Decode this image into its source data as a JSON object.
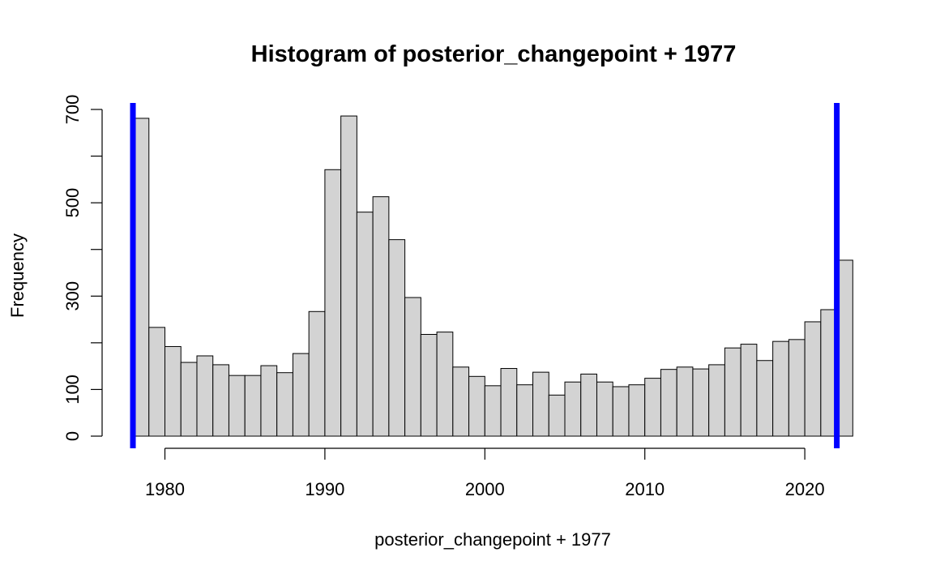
{
  "chart_data": {
    "type": "bar",
    "title": "Histogram of posterior_changepoint + 1977",
    "xlabel": "posterior_changepoint + 1977",
    "ylabel": "Frequency",
    "xlim": [
      1976.5,
      2023
    ],
    "ylim": [
      0,
      735
    ],
    "x_ticks": [
      1980,
      1990,
      2000,
      2010,
      2020
    ],
    "y_ticks": [
      0,
      100,
      300,
      500,
      700
    ],
    "bin_width": 1,
    "bins_start": [
      1978,
      1979,
      1980,
      1981,
      1982,
      1983,
      1984,
      1985,
      1986,
      1987,
      1988,
      1989,
      1990,
      1991,
      1992,
      1993,
      1994,
      1995,
      1996,
      1997,
      1998,
      1999,
      2000,
      2001,
      2002,
      2003,
      2004,
      2005,
      2006,
      2007,
      2008,
      2009,
      2010,
      2011,
      2012,
      2013,
      2014,
      2015,
      2016,
      2017,
      2018,
      2019,
      2020,
      2021,
      2022
    ],
    "values": [
      681,
      233,
      192,
      158,
      172,
      153,
      130,
      130,
      151,
      136,
      177,
      267,
      571,
      686,
      480,
      513,
      421,
      297,
      218,
      223,
      148,
      128,
      108,
      145,
      110,
      137,
      88,
      116,
      133,
      116,
      106,
      110,
      124,
      143,
      148,
      144,
      153,
      189,
      197,
      162,
      203,
      207,
      245,
      271,
      377
    ],
    "reference_lines": [
      {
        "x": 1978,
        "color": "#0000ff"
      },
      {
        "x": 2022,
        "color": "#0000ff"
      }
    ],
    "colors": {
      "bar_fill": "#d3d3d3",
      "bar_stroke": "#000000",
      "ref_line": "#0000ff"
    },
    "grid": false
  }
}
